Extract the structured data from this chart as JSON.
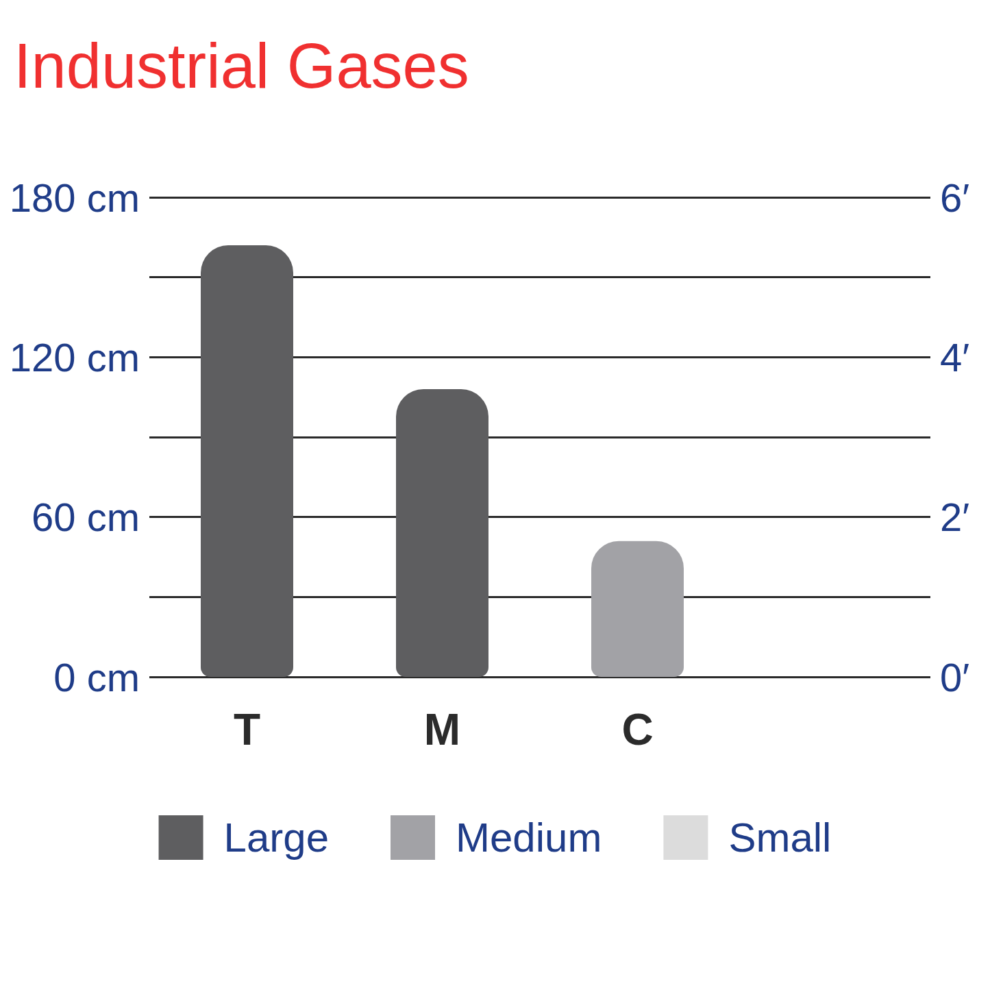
{
  "chart_data": {
    "type": "bar",
    "title": "Industrial Gases",
    "categories": [
      "T",
      "M",
      "C",
      null
    ],
    "series": [
      {
        "name": "Large",
        "color": "#5e5e60",
        "values": [
          162,
          108,
          null,
          null
        ]
      },
      {
        "name": "Medium",
        "color": "#a2a2a6",
        "values": [
          null,
          null,
          51,
          null
        ]
      },
      {
        "name": "Small",
        "color": "#dcdcdc",
        "values": [
          null,
          null,
          null,
          null
        ]
      }
    ],
    "ylim": [
      0,
      180
    ],
    "yticks": [
      {
        "value": 0,
        "label": "0 cm"
      },
      {
        "value": 30,
        "label": null
      },
      {
        "value": 60,
        "label": "60 cm"
      },
      {
        "value": 90,
        "label": null
      },
      {
        "value": 120,
        "label": "120 cm"
      },
      {
        "value": 150,
        "label": null
      },
      {
        "value": 180,
        "label": "180 cm"
      }
    ],
    "y2lim": [
      0,
      6
    ],
    "y2ticks": [
      {
        "value": 0,
        "label": "0′"
      },
      {
        "value": 2,
        "label": "2′"
      },
      {
        "value": 4,
        "label": "4′"
      },
      {
        "value": 6,
        "label": "6′"
      }
    ],
    "grid": "y",
    "legend": "bottom"
  }
}
